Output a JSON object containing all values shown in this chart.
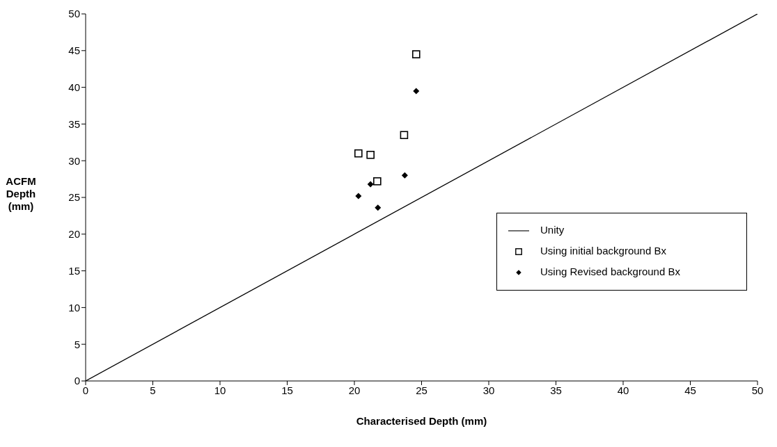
{
  "chart_data": {
    "type": "scatter",
    "xlabel": "Characterised Depth (mm)",
    "ylabel": "ACFM Depth (mm)",
    "xlim": [
      0,
      50
    ],
    "xticks": [
      0,
      5,
      10,
      15,
      20,
      25,
      30,
      35,
      40,
      45,
      50
    ],
    "ylim": [
      0,
      50
    ],
    "yticks": [
      0,
      5,
      10,
      15,
      20,
      25,
      30,
      35,
      40,
      45,
      50
    ],
    "grid": false,
    "legend": "right",
    "series": [
      {
        "name": "Unity",
        "type": "line",
        "color": "#000000",
        "marker": "none",
        "line_style": "solid",
        "x": [
          0,
          50
        ],
        "values": [
          0,
          50
        ]
      },
      {
        "name": "Using initial background Bx",
        "color": "#000000",
        "marker": "square",
        "x": [
          24.6,
          23.7,
          20.3,
          21.2,
          21.7
        ],
        "values": [
          44.5,
          33.5,
          31.0,
          30.8,
          27.2
        ]
      },
      {
        "name": "Using Revised background Bx",
        "color": "#000000",
        "marker": "diamond",
        "x": [
          24.6,
          23.75,
          21.2,
          20.3,
          21.75
        ],
        "values": [
          39.5,
          28.0,
          26.8,
          25.2,
          23.6
        ]
      }
    ]
  }
}
